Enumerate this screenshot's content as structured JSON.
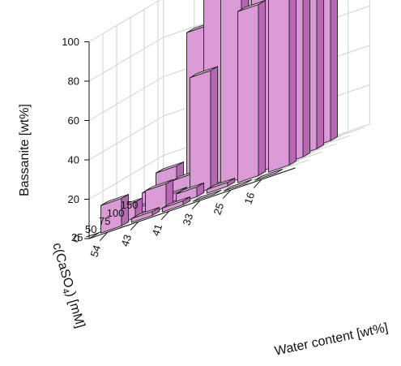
{
  "chart_data": {
    "type": "bar3d",
    "colors": {
      "bar_front": "#d99ad6",
      "bar_side": "#b767b3",
      "bar_top": "#edc4ea",
      "edge": "#222222"
    },
    "grid": true,
    "x_axis": {
      "label": "Water content [wt%]",
      "categories": [
        "54",
        "43",
        "41",
        "33",
        "25",
        "16"
      ]
    },
    "y_axis": {
      "label_main": "c(CaSO",
      "label_sub": "4",
      "label_tail": ") [mM]",
      "ticks": [
        "25",
        "50",
        "75",
        "100",
        "150"
      ]
    },
    "z_axis": {
      "label": "Bassanite [wt%]",
      "ticks": [
        "0",
        "20",
        "40",
        "60",
        "80",
        "100"
      ],
      "zlim": [
        0,
        100
      ]
    },
    "bars": [
      {
        "x": "54",
        "y": "150",
        "value": 14
      },
      {
        "x": "43",
        "y": "150",
        "value": 80
      },
      {
        "x": "41",
        "y": "150",
        "value": 95
      },
      {
        "x": "33",
        "y": "150",
        "value": 97
      },
      {
        "x": "25",
        "y": "150",
        "value": 96
      },
      {
        "x": "16",
        "y": "150",
        "value": 95
      },
      {
        "x": "54",
        "y": "100",
        "value": 8
      },
      {
        "x": "43",
        "y": "100",
        "value": 9
      },
      {
        "x": "41",
        "y": "100",
        "value": 96
      },
      {
        "x": "33",
        "y": "100",
        "value": 89
      },
      {
        "x": "25",
        "y": "100",
        "value": 91
      },
      {
        "x": "16",
        "y": "100",
        "value": 90
      },
      {
        "x": "54",
        "y": "75",
        "value": 3
      },
      {
        "x": "43",
        "y": "75",
        "value": 4
      },
      {
        "x": "41",
        "y": "75",
        "value": 60
      },
      {
        "x": "33",
        "y": "75",
        "value": 98
      },
      {
        "x": "25",
        "y": "75",
        "value": 93
      },
      {
        "x": "16",
        "y": "75",
        "value": 97
      },
      {
        "x": "54",
        "y": "50",
        "value": 8
      },
      {
        "x": "43",
        "y": "50",
        "value": 12
      },
      {
        "x": "41",
        "y": "50",
        "value": 5
      },
      {
        "x": "33",
        "y": "50",
        "value": 2
      },
      {
        "x": "25",
        "y": "50",
        "value": 87
      },
      {
        "x": "16",
        "y": "50",
        "value": 96
      },
      {
        "x": "54",
        "y": "25",
        "value": 14
      },
      {
        "x": "43",
        "y": "25",
        "value": 2
      },
      {
        "x": "41",
        "y": "25",
        "value": 2
      },
      {
        "x": "33",
        "y": "25",
        "value": 0
      },
      {
        "x": "25",
        "y": "25",
        "value": 0
      },
      {
        "x": "16",
        "y": "25",
        "value": 0
      }
    ]
  }
}
